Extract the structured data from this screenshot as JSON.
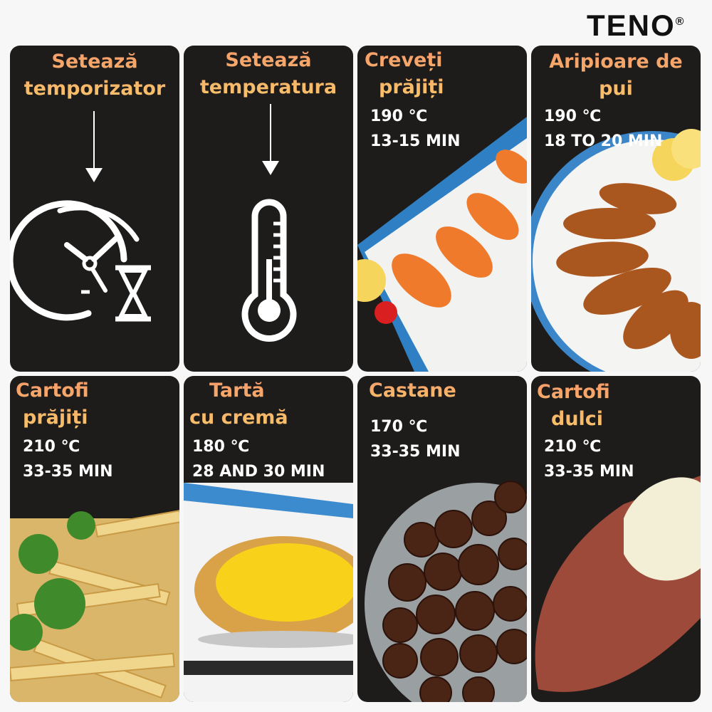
{
  "brand": {
    "name": "TENO",
    "mark": "®"
  },
  "cards": [
    {
      "title1": "Setează",
      "title2": "temporizator",
      "icon": "clock-hourglass-icon"
    },
    {
      "title1": "Setează",
      "title2": "temperatura",
      "icon": "thermometer-icon"
    },
    {
      "title1": "Creveți",
      "title2": "prăjiți",
      "temp": "190 ℃",
      "time": "13-15 MIN"
    },
    {
      "title1": "Aripioare de",
      "title2": "pui",
      "temp": "190 ℃",
      "time": "18 TO 20 MIN"
    },
    {
      "title1": "Cartofi",
      "title2": "prăjiți",
      "temp": "210 ℃",
      "time": "33-35 MIN"
    },
    {
      "title1": "Tartă",
      "title2": "cu cremă",
      "temp": "180 ℃",
      "time": "28 AND 30 MIN"
    },
    {
      "title1": "Castane",
      "title2": "",
      "temp": "170 ℃",
      "time": "33-35 MIN"
    },
    {
      "title1": "Cartofi",
      "title2": "dulci",
      "temp": "210 ℃",
      "time": "33-35 MIN"
    }
  ],
  "colors": {
    "card": "#1e1c1b",
    "title_top": "#f59a6a",
    "title_bottom": "#f8c56a"
  }
}
